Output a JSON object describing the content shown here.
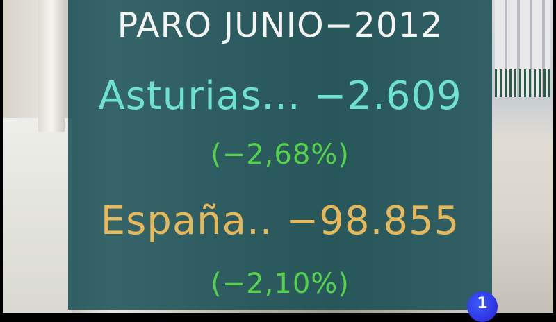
{
  "headline": "PARO JUNIO−2012",
  "regions": [
    {
      "label": "Asturias... −2.609",
      "percent": "(−2,68%)",
      "color": "#6fe2cf"
    },
    {
      "label": "España.. −98.855",
      "percent": "(−2,10%)",
      "color": "#e6b85a"
    }
  ],
  "channel_logo": "1"
}
